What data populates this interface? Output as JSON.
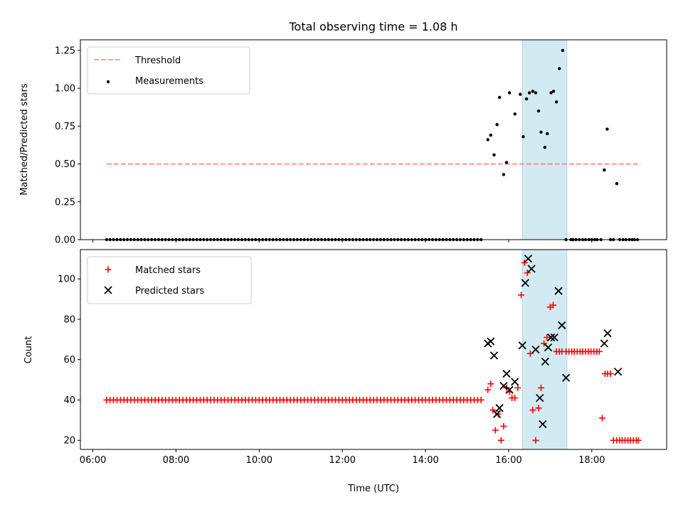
{
  "figure": {
    "title": "Total observing time = 1.08 h",
    "xlabel": "Time (UTC)",
    "xticks": [
      6,
      8,
      10,
      12,
      14,
      16,
      18
    ],
    "xtick_labels": [
      "06:00",
      "08:00",
      "10:00",
      "12:00",
      "14:00",
      "16:00",
      "18:00"
    ],
    "xlim": [
      5.7,
      19.8
    ],
    "shaded_span": [
      16.33,
      17.4
    ],
    "span_color": "#add8e6"
  },
  "chart_data": [
    {
      "type": "scatter",
      "ylabel": "Matched/Predicted stars",
      "ylim": [
        0,
        1.32
      ],
      "yticks": [
        0,
        0.25,
        0.5,
        0.75,
        1.0,
        1.25
      ],
      "ytick_labels": [
        "0.00",
        "0.25",
        "0.50",
        "0.75",
        "1.00",
        "1.25"
      ],
      "legend_position": "top-left",
      "threshold": {
        "name": "Threshold",
        "x": [
          6.33,
          19.17
        ],
        "y": 0.5,
        "color": "#ff7f7f"
      },
      "series": [
        {
          "name": "Measurements",
          "color": "#000000",
          "zero_run": {
            "start": 6.33,
            "end": 15.42,
            "step": 0.0834,
            "y": 0
          },
          "x": [
            15.5,
            15.57,
            15.65,
            15.72,
            15.78,
            15.88,
            15.95,
            16.02,
            16.15,
            16.28,
            16.35,
            16.43,
            16.5,
            16.58,
            16.65,
            16.72,
            16.78,
            16.87,
            16.93,
            17.02,
            17.08,
            17.15,
            17.22,
            17.3,
            17.38,
            17.5,
            17.55,
            17.62,
            17.7,
            17.78,
            17.85,
            17.93,
            18.0,
            18.07,
            18.13,
            18.22,
            18.3,
            18.37,
            18.45,
            18.52,
            18.6,
            18.67,
            18.75,
            18.82,
            18.9,
            18.97,
            19.03,
            19.1
          ],
          "y": [
            0.66,
            0.69,
            0.56,
            0.76,
            0.94,
            0.43,
            0.51,
            0.97,
            0.83,
            0.96,
            0.68,
            0.93,
            0.97,
            0.98,
            0.97,
            0.85,
            0.71,
            0.61,
            0.7,
            0.97,
            0.98,
            0.91,
            1.13,
            1.25,
            0,
            0,
            0,
            0,
            0,
            0,
            0,
            0,
            0,
            0,
            0,
            0,
            0.46,
            0.73,
            0,
            0,
            0.37,
            0,
            0,
            0,
            0,
            0,
            0,
            0
          ]
        }
      ]
    },
    {
      "type": "scatter",
      "ylabel": "Count",
      "ylim": [
        15.5,
        114.5
      ],
      "yticks": [
        20,
        40,
        60,
        80,
        100
      ],
      "ytick_labels": [
        "20",
        "40",
        "60",
        "80",
        "100"
      ],
      "legend_position": "top-left",
      "series": [
        {
          "name": "Matched stars",
          "marker": "plus",
          "color": "#ff0000",
          "constant_run": {
            "start": 6.33,
            "end": 15.42,
            "step": 0.0834,
            "y": 40
          },
          "x": [
            15.5,
            15.57,
            15.62,
            15.68,
            15.75,
            15.82,
            15.88,
            15.95,
            16.02,
            16.08,
            16.15,
            16.22,
            16.3,
            16.38,
            16.45,
            16.52,
            16.58,
            16.65,
            16.72,
            16.78,
            16.85,
            16.92,
            17.0,
            17.07,
            17.15,
            17.22,
            17.28,
            17.38,
            17.45,
            17.52,
            17.58,
            17.65,
            17.72,
            17.78,
            17.85,
            17.92,
            17.98,
            18.05,
            18.12,
            18.18,
            18.25,
            18.32,
            18.38,
            18.45,
            18.52,
            18.6,
            18.67,
            18.73,
            18.8,
            18.87,
            18.93,
            19.0,
            19.07,
            19.12
          ],
          "y": [
            45,
            48,
            35,
            25,
            33,
            20,
            27,
            46,
            44,
            41,
            41,
            46,
            92,
            108,
            103,
            63,
            35,
            20,
            36,
            46,
            68,
            71,
            86,
            87,
            64,
            64,
            64,
            64,
            64,
            64,
            64,
            64,
            64,
            64,
            64,
            64,
            64,
            64,
            64,
            64,
            31,
            53,
            53,
            53,
            20,
            20,
            20,
            20,
            20,
            20,
            20,
            20,
            20,
            20
          ]
        },
        {
          "name": "Predicted stars",
          "marker": "x",
          "color": "#000000",
          "x": [
            15.5,
            15.57,
            15.65,
            15.72,
            15.78,
            15.88,
            15.95,
            16.02,
            16.15,
            16.33,
            16.4,
            16.47,
            16.55,
            16.65,
            16.75,
            16.82,
            16.88,
            16.95,
            17.02,
            17.1,
            17.2,
            17.28,
            17.38,
            18.3,
            18.38,
            18.63
          ],
          "y": [
            68,
            69,
            62,
            33,
            36,
            47,
            53,
            45,
            49,
            67,
            98,
            110,
            105,
            65,
            41,
            28,
            59,
            66,
            71,
            71,
            94,
            77,
            51,
            68,
            73,
            54
          ]
        }
      ]
    }
  ]
}
